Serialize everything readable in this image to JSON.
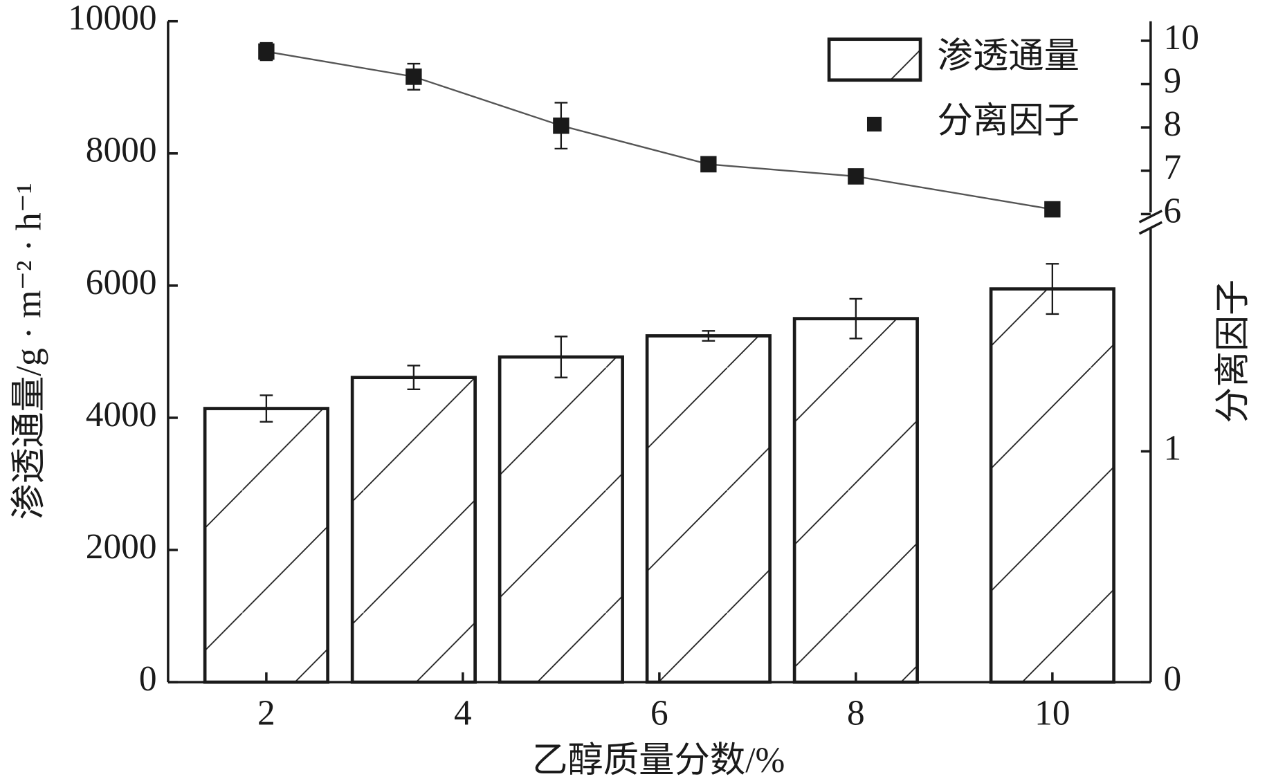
{
  "chart_data": {
    "type": "bar_line_dual",
    "x_label": "乙醇质量分数/%",
    "y_label": "渗透通量/g · m⁻² · h⁻¹",
    "y2_label": "分离因子",
    "x": [
      2,
      3.5,
      5,
      6.5,
      8,
      10
    ],
    "xlim": [
      1,
      11
    ],
    "xticks": [
      2,
      4,
      6,
      8,
      10
    ],
    "ylim": [
      0,
      10000
    ],
    "yticks": [
      0,
      2000,
      4000,
      6000,
      8000,
      10000
    ],
    "y2lim": [
      0,
      10.45
    ],
    "y2break": [
      2,
      5.85
    ],
    "y2ticks": [
      0,
      1,
      6,
      7,
      8,
      9,
      10
    ],
    "legend": "upper right",
    "series": [
      {
        "name": "渗透通量",
        "type": "bar",
        "color": "#1a1a1a",
        "hatch": true,
        "values": [
          4140,
          4610,
          4920,
          5240,
          5500,
          5950
        ],
        "errors": [
          200,
          180,
          310,
          75,
          300,
          380
        ]
      },
      {
        "name": "分离因子",
        "type": "line",
        "axis": "y2",
        "color": "#1a1a1a",
        "values": [
          9.75,
          9.17,
          8.04,
          7.15,
          6.87,
          6.11
        ],
        "errors": [
          0.2,
          0.3,
          0.53,
          0,
          0,
          0
        ]
      }
    ]
  }
}
